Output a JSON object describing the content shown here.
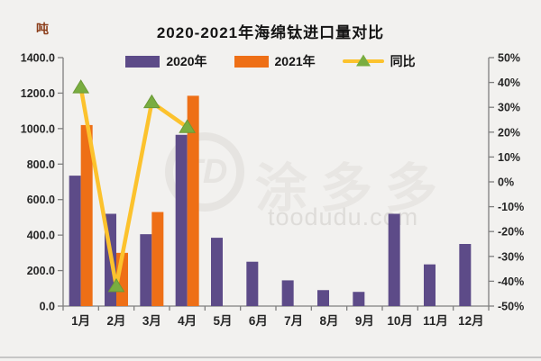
{
  "title": "2020-2021年海绵钛进口量对比",
  "unit_label": "吨",
  "legend": {
    "items": [
      {
        "label": "2020年",
        "color": "#5d4b88",
        "type": "bar"
      },
      {
        "label": "2021年",
        "color": "#ee6f16",
        "type": "bar"
      },
      {
        "label": "同比",
        "color": "#fcc22d",
        "marker_color": "#79ad40",
        "type": "line"
      }
    ]
  },
  "watermark": {
    "logo": "TD",
    "brand": "涂多多",
    "site": "toodudu.com"
  },
  "chart_data": {
    "type": "bar",
    "title": "2020-2021年海绵钛进口量对比",
    "categories": [
      "1月",
      "2月",
      "3月",
      "4月",
      "5月",
      "6月",
      "7月",
      "8月",
      "9月",
      "10月",
      "11月",
      "12月"
    ],
    "series": [
      {
        "name": "2020年",
        "type": "bar",
        "axis": "left",
        "color": "#5d4b88",
        "values": [
          735,
          520,
          405,
          965,
          385,
          250,
          145,
          90,
          80,
          520,
          235,
          350
        ]
      },
      {
        "name": "2021年",
        "type": "bar",
        "axis": "left",
        "color": "#ee6f16",
        "values": [
          1020,
          300,
          530,
          1185,
          null,
          null,
          null,
          null,
          null,
          null,
          null,
          null
        ]
      },
      {
        "name": "同比",
        "type": "line",
        "axis": "right",
        "color": "#fcc22d",
        "marker": "triangle",
        "marker_color": "#79ad40",
        "marker_edge": "#6b9a36",
        "values": [
          38,
          -42,
          32,
          22,
          null,
          null,
          null,
          null,
          null,
          null,
          null,
          null
        ]
      }
    ],
    "left_axis": {
      "unit": "吨",
      "min": 0,
      "max": 1400,
      "step": 200,
      "labels": [
        "0.0",
        "200.0",
        "400.0",
        "600.0",
        "800.0",
        "1000.0",
        "1200.0",
        "1400.0"
      ]
    },
    "right_axis": {
      "unit": "%",
      "min": -50,
      "max": 50,
      "step": 10,
      "labels": [
        "-50%",
        "-40%",
        "-30%",
        "-20%",
        "-10%",
        "0%",
        "10%",
        "20%",
        "30%",
        "40%",
        "50%"
      ]
    },
    "grid": false,
    "legend_position": "top",
    "axis_color": "#7f7f7f",
    "label_color": "#262626"
  }
}
